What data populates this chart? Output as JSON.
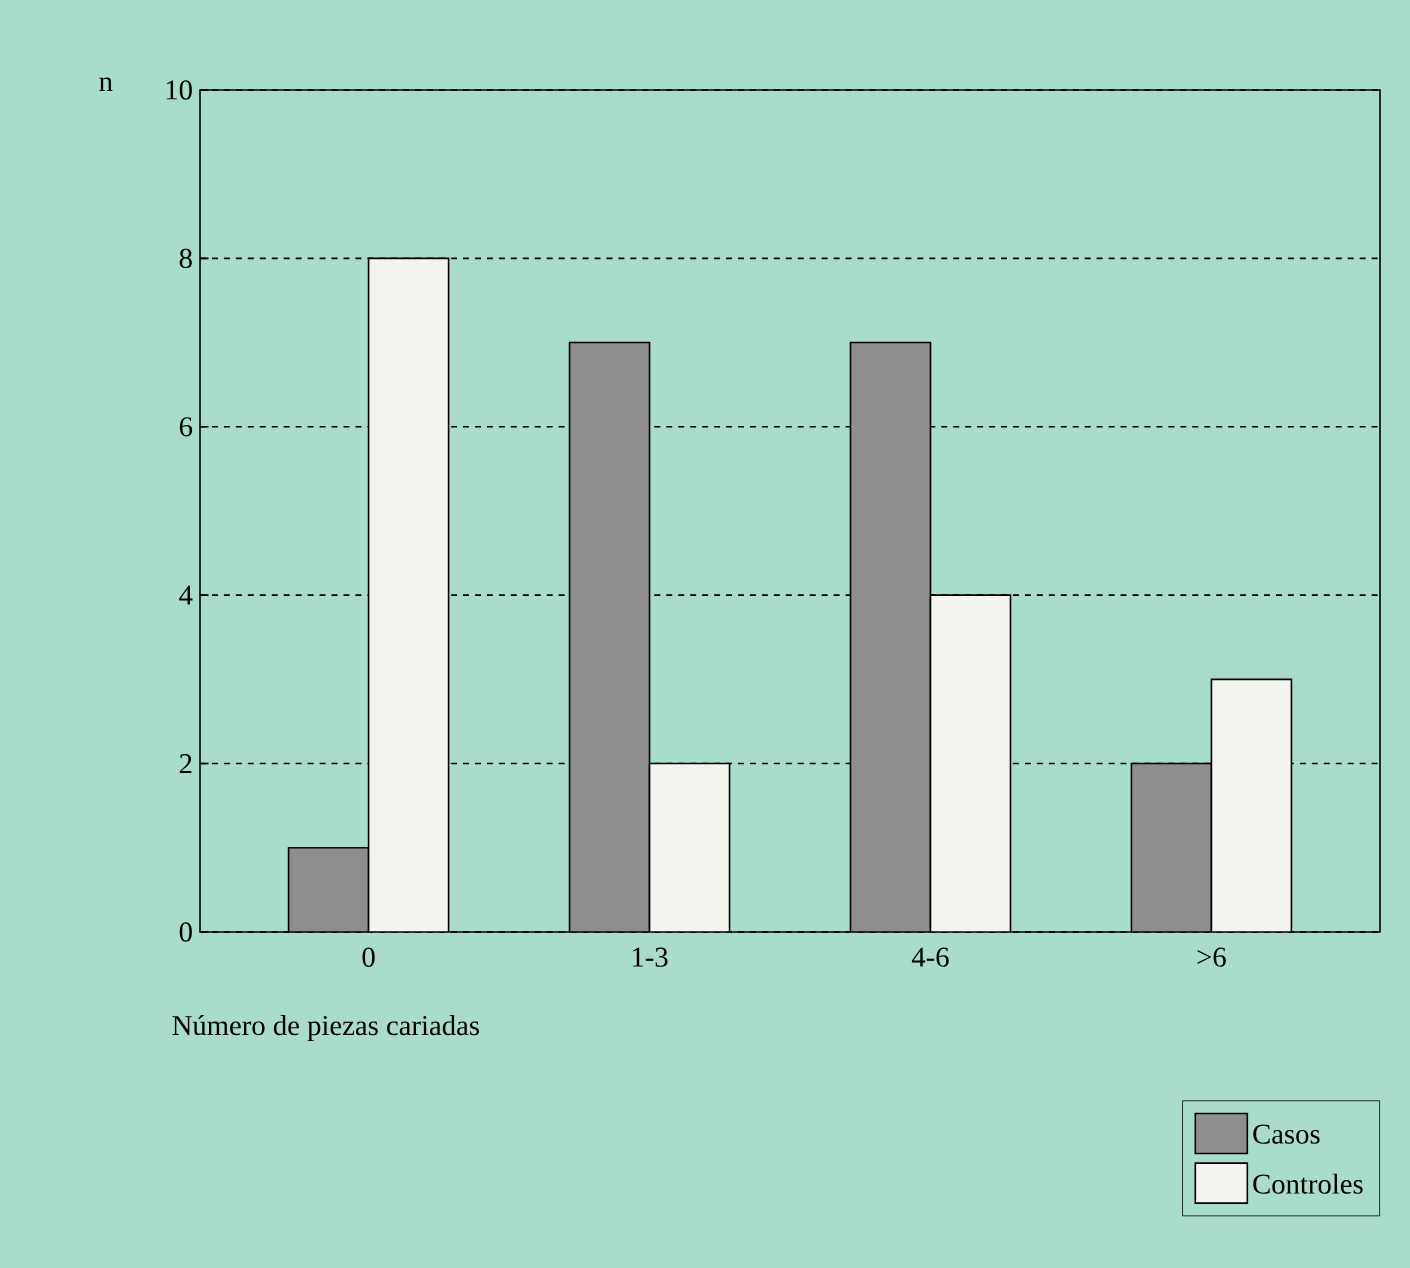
{
  "chart_data": {
    "type": "bar",
    "xlabel": "Número de piezas cariadas",
    "ylabel": "n",
    "categories": [
      "0",
      "1-3",
      "4-6",
      ">6"
    ],
    "series": [
      {
        "name": "Casos",
        "color": "#8e8e8e",
        "values": [
          1,
          7,
          7,
          2
        ]
      },
      {
        "name": "Controles",
        "color": "#f4f4ef",
        "values": [
          8,
          2,
          4,
          3
        ]
      }
    ],
    "ylim": [
      0,
      10
    ],
    "yticks": [
      0,
      2,
      4,
      6,
      8,
      10
    ],
    "grid": "y",
    "legend": "bottom right"
  }
}
